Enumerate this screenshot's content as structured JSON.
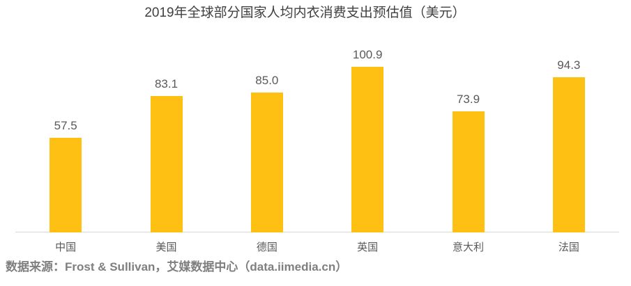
{
  "title": "2019年全球部分国家人均内衣消费支出预估值（美元）",
  "source_note": "数据来源：Frost & Sullivan，艾媒数据中心（data.iimedia.cn）",
  "colors": {
    "bar": "#FDC013",
    "title_text": "#404040",
    "label_text": "#595959",
    "axis_line": "#D9D9D9",
    "source_text": "#7F7F7F",
    "background": "#FFFFFF"
  },
  "chart_data": {
    "type": "bar",
    "title": "2019年全球部分国家人均内衣消费支出预估值（美元）",
    "categories": [
      "中国",
      "美国",
      "德国",
      "英国",
      "意大利",
      "法国"
    ],
    "values": [
      57.5,
      83.1,
      85.0,
      100.9,
      73.9,
      94.3
    ],
    "value_labels": [
      "57.5",
      "83.1",
      "85.0",
      "100.9",
      "73.9",
      "94.3"
    ],
    "xlabel": "",
    "ylabel": "",
    "ylim": [
      0,
      120
    ],
    "grid": false,
    "legend": "none",
    "data_labels": "above-bars",
    "baseline_axis": "x-axis only, no y-axis, no tick marks"
  }
}
